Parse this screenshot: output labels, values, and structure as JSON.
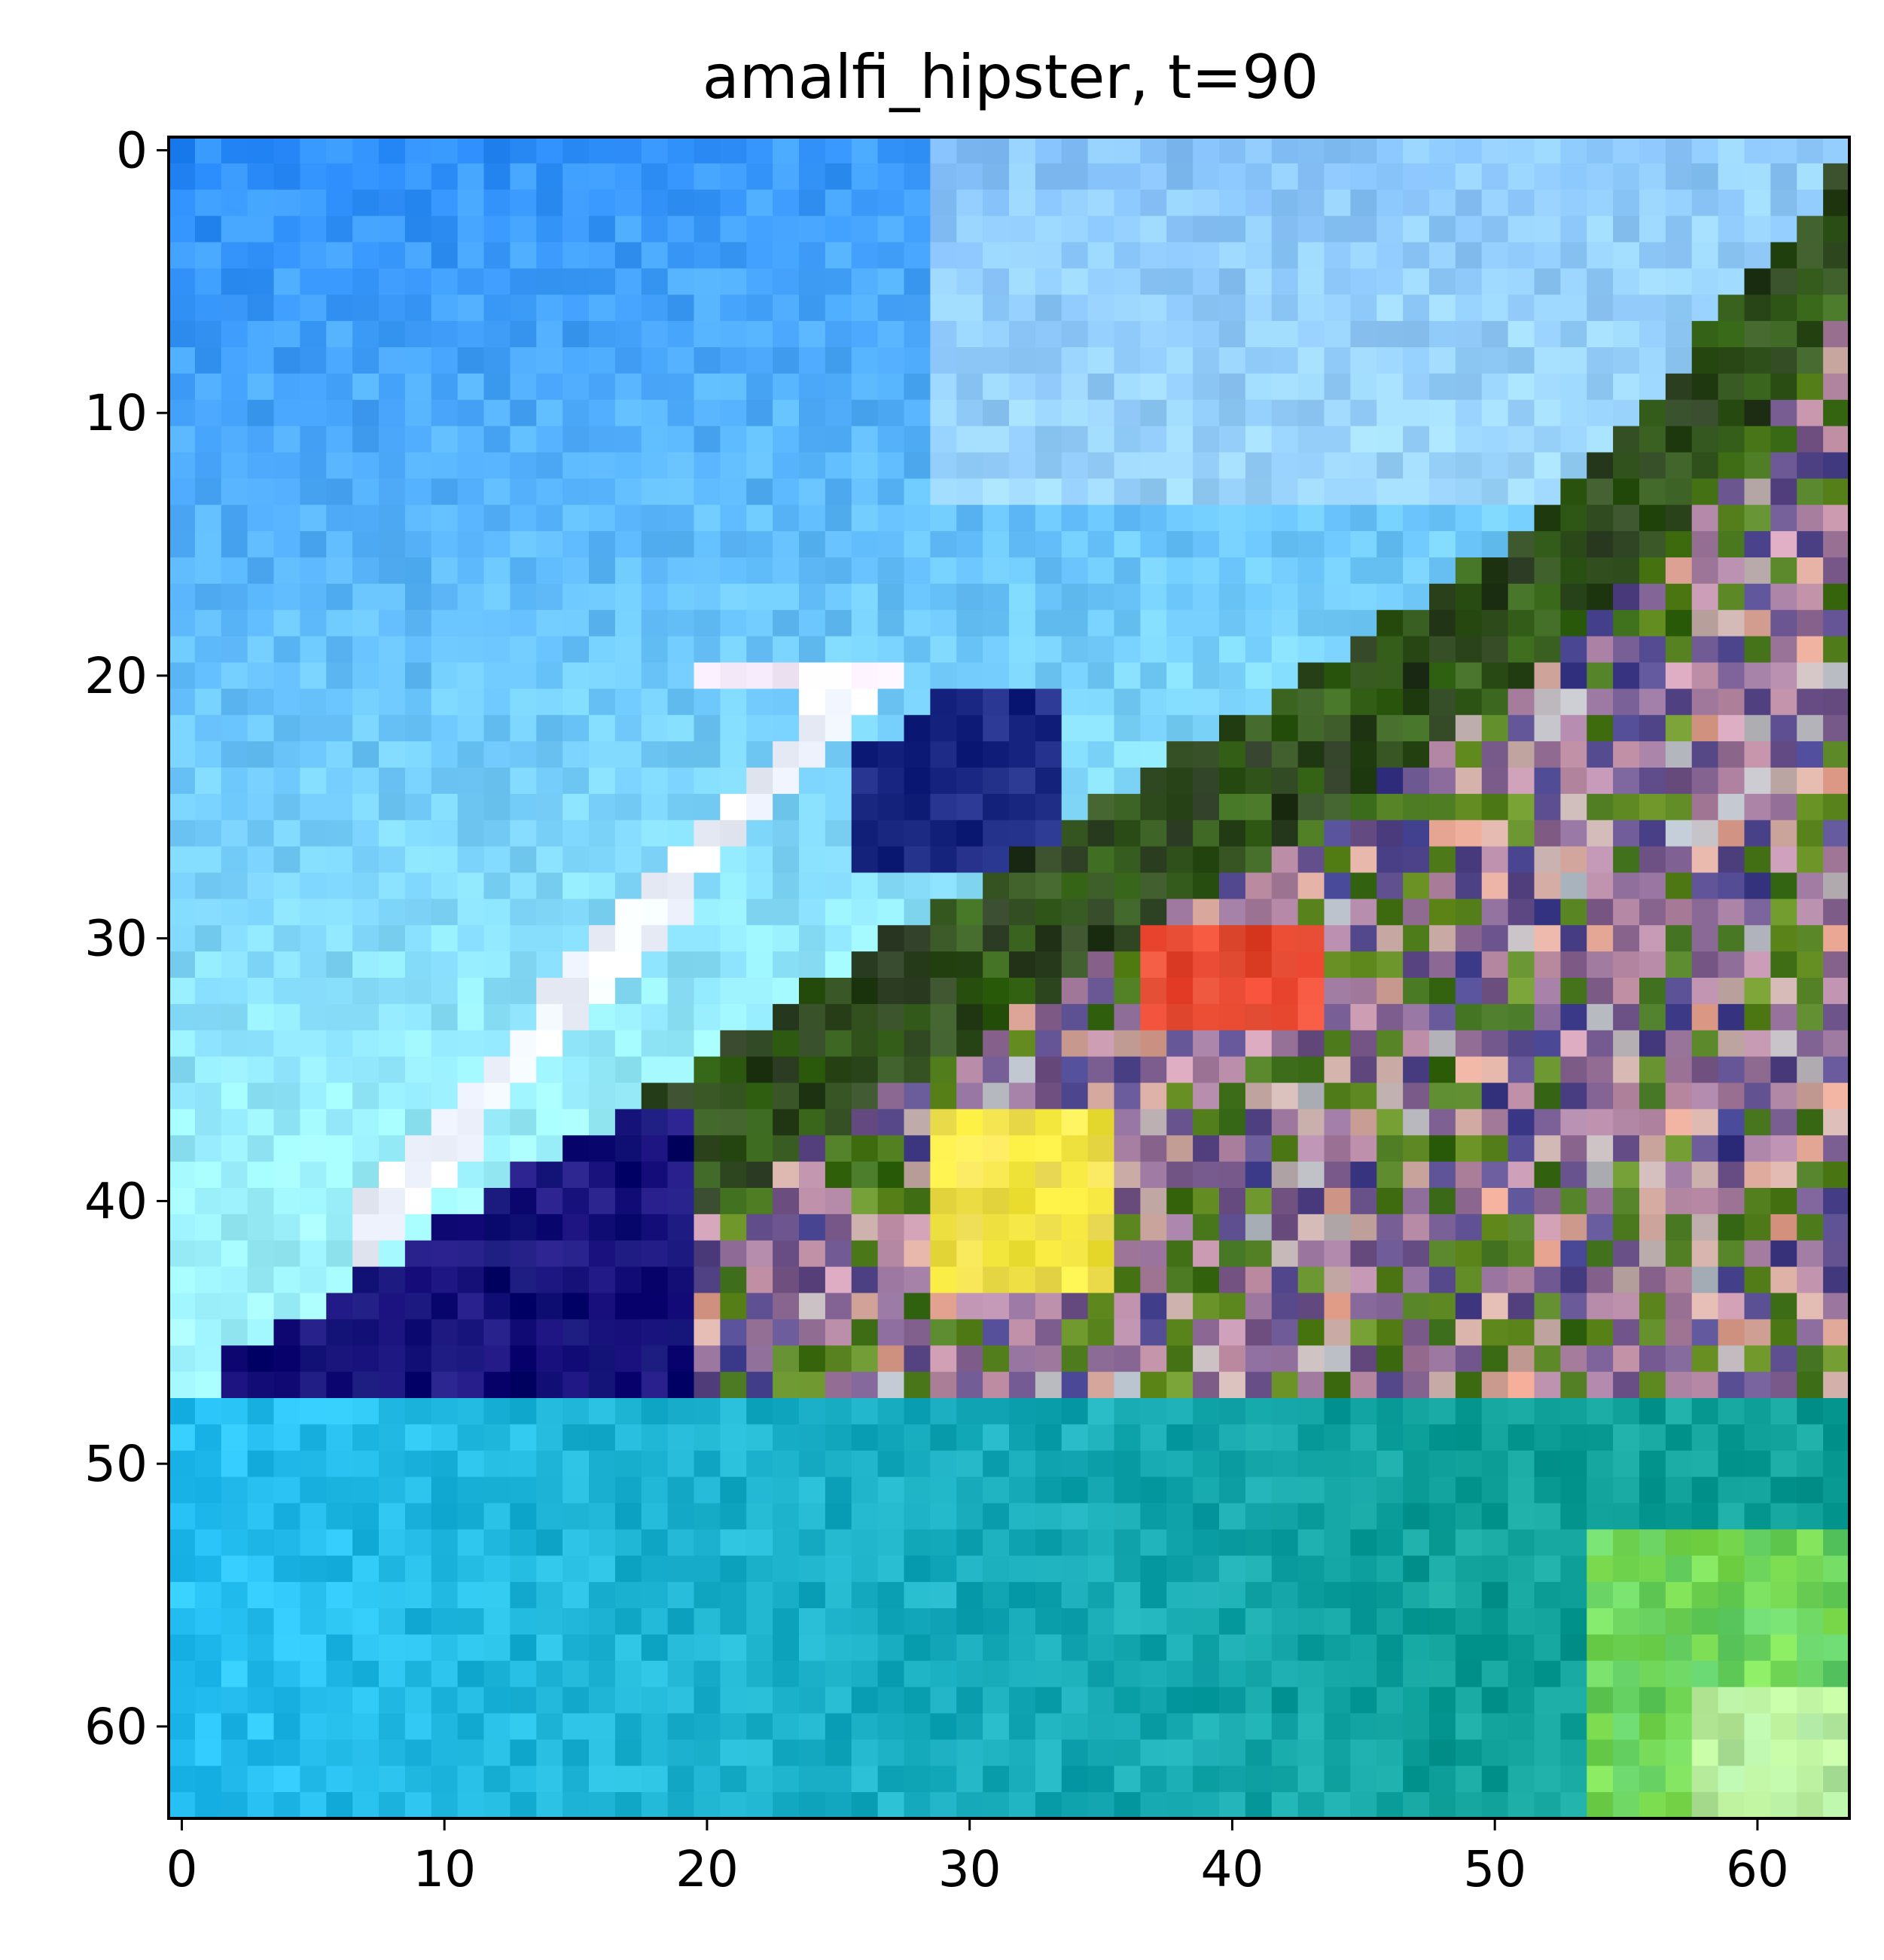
{
  "title": "amalfi_hipster, t=90",
  "image": {
    "description_colors": {
      "sky": "#2b8cff",
      "sky_light": "#9ff3ff",
      "cliff_dark": "#0a0a6e",
      "vegetation": "#3a6b1a",
      "buildings_red": "#e8402a",
      "buildings_yellow": "#f5e83a",
      "water": "#0fa09a",
      "water_light": "#27c0f5",
      "shore_green": "#8fe84a"
    }
  },
  "chart_data": {
    "type": "heatmap",
    "title": "amalfi_hipster, t=90",
    "xlabel": "",
    "ylabel": "",
    "xlim": [
      -0.5,
      63.5
    ],
    "ylim": [
      63.5,
      -0.5
    ],
    "x_ticks": [
      "0",
      "10",
      "20",
      "30",
      "40",
      "50",
      "60"
    ],
    "y_ticks": [
      "0",
      "10",
      "20",
      "30",
      "40",
      "50",
      "60"
    ],
    "grid": false,
    "grid_size": [
      64,
      64
    ]
  }
}
